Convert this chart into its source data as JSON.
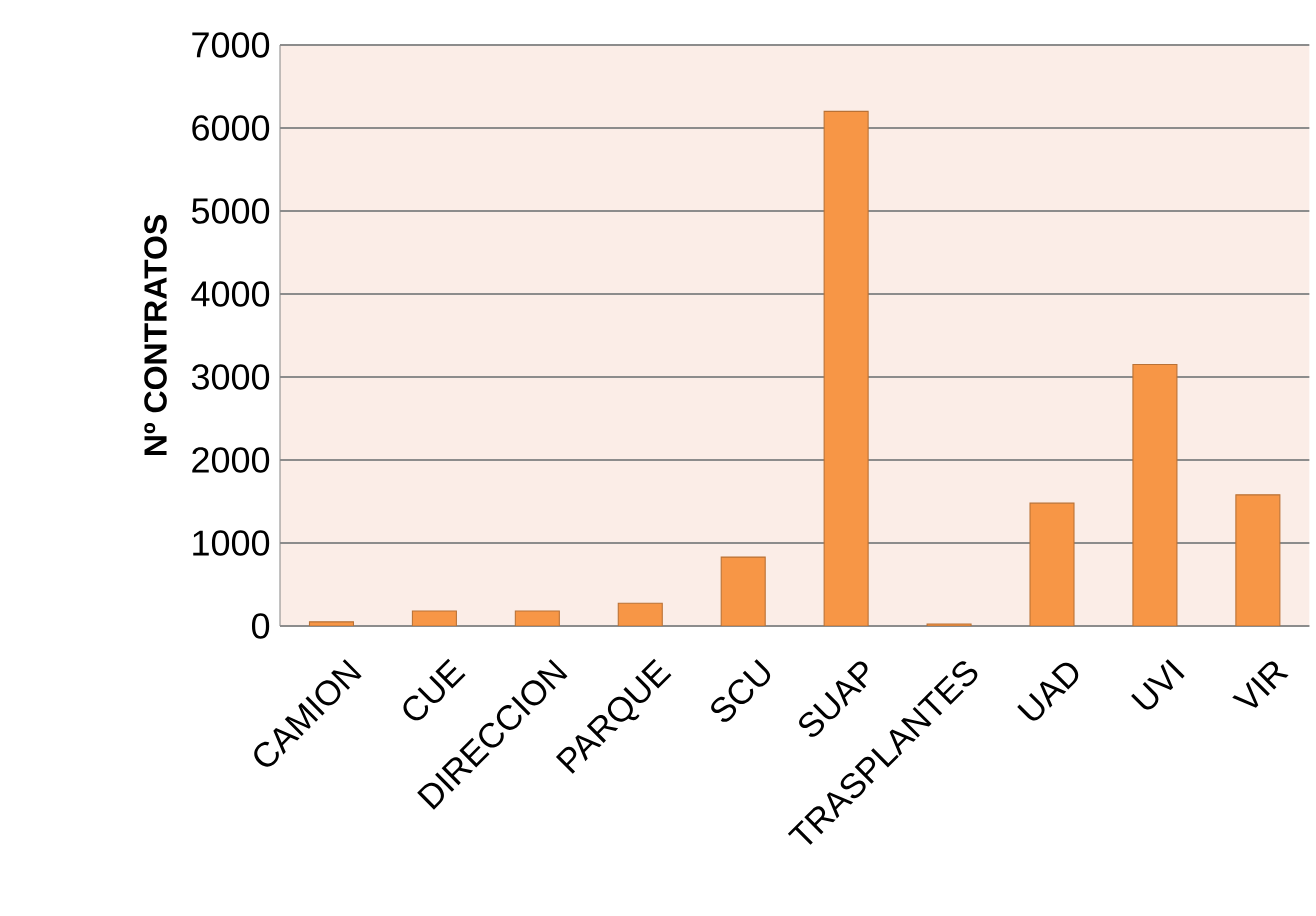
{
  "chart_data": {
    "type": "bar",
    "ylabel": "Nº CONTRATOS",
    "categories": [
      "CAMION",
      "CUE",
      "DIRECCION",
      "PARQUE",
      "SCU",
      "SUAP",
      "TRASPLANTES",
      "UAD",
      "UVI",
      "VIR"
    ],
    "values": [
      50,
      180,
      180,
      275,
      830,
      6200,
      25,
      1480,
      3150,
      1580
    ],
    "color": "#f79646",
    "ylim": [
      0,
      7000
    ],
    "yticks": [
      0,
      1000,
      2000,
      3000,
      4000,
      5000,
      6000,
      7000
    ],
    "grid": "y"
  }
}
